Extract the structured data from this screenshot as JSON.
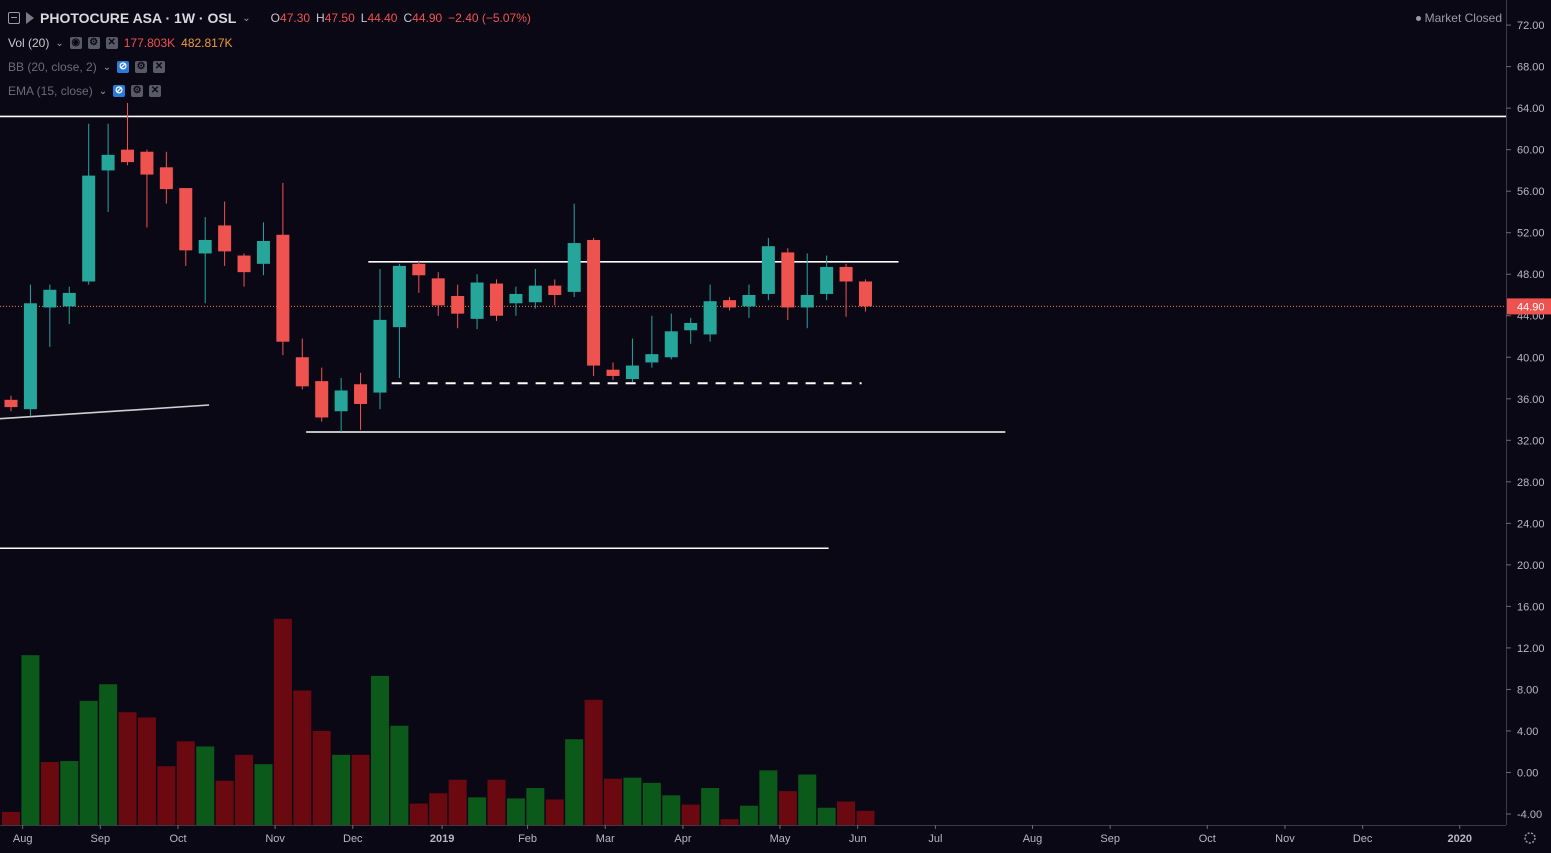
{
  "header": {
    "symbol": "PHOTOCURE ASA · 1W · OSL",
    "ohlc": [
      {
        "k": "O",
        "v": "47.30"
      },
      {
        "k": "H",
        "v": "47.50"
      },
      {
        "k": "L",
        "v": "44.40"
      },
      {
        "k": "C",
        "v": "44.90"
      }
    ],
    "change": "−2.40 (−5.07%)",
    "market_status": "Market Closed"
  },
  "indicators": {
    "vol": {
      "label": "Vol (20)",
      "v1": "177.803K",
      "v2": "482.817K"
    },
    "bb": {
      "label": "BB (20, close, 2)"
    },
    "ema": {
      "label": "EMA (15, close)"
    }
  },
  "chart_data": {
    "type": "candlestick",
    "y_ticks": [
      "72.00",
      "68.00",
      "64.00",
      "60.00",
      "56.00",
      "52.00",
      "48.00",
      "44.00",
      "40.00",
      "36.00",
      "32.00",
      "28.00",
      "24.00",
      "20.00",
      "16.00",
      "12.00",
      "8.00",
      "4.00",
      "0.00",
      "-4.00"
    ],
    "ylim": [
      -6,
      73.5
    ],
    "x_labels": [
      {
        "label": "Aug",
        "i": 0.6
      },
      {
        "label": "Sep",
        "i": 4.6
      },
      {
        "label": "Oct",
        "i": 8.6
      },
      {
        "label": "Nov",
        "i": 13.6
      },
      {
        "label": "Dec",
        "i": 17.6
      },
      {
        "label": "2019",
        "i": 22.2
      },
      {
        "label": "Feb",
        "i": 26.6
      },
      {
        "label": "Mar",
        "i": 30.6
      },
      {
        "label": "Apr",
        "i": 34.6
      },
      {
        "label": "May",
        "i": 39.6
      },
      {
        "label": "Jun",
        "i": 43.6
      },
      {
        "label": "Jul",
        "i": 47.6
      },
      {
        "label": "Aug",
        "i": 52.6
      },
      {
        "label": "Sep",
        "i": 56.6
      },
      {
        "label": "Oct",
        "i": 61.6
      },
      {
        "label": "Nov",
        "i": 65.6
      },
      {
        "label": "Dec",
        "i": 69.6
      },
      {
        "label": "2020",
        "i": 74.6
      }
    ],
    "last_price": "44.90",
    "candles": [
      {
        "o": 35.9,
        "h": 36.3,
        "l": 34.8,
        "c": 35.2
      },
      {
        "o": 35.0,
        "h": 47.0,
        "l": 34.3,
        "c": 45.2
      },
      {
        "o": 44.8,
        "h": 47.0,
        "l": 41.0,
        "c": 46.5
      },
      {
        "o": 44.9,
        "h": 46.8,
        "l": 43.2,
        "c": 46.2
      },
      {
        "o": 47.3,
        "h": 62.5,
        "l": 47.0,
        "c": 57.5
      },
      {
        "o": 58.0,
        "h": 62.5,
        "l": 54.0,
        "c": 59.5
      },
      {
        "o": 60.0,
        "h": 64.5,
        "l": 58.5,
        "c": 58.8
      },
      {
        "o": 59.8,
        "h": 60.0,
        "l": 52.5,
        "c": 57.6
      },
      {
        "o": 58.3,
        "h": 59.8,
        "l": 54.8,
        "c": 56.2
      },
      {
        "o": 56.3,
        "h": 56.3,
        "l": 48.8,
        "c": 50.3
      },
      {
        "o": 50.0,
        "h": 53.5,
        "l": 45.2,
        "c": 51.3
      },
      {
        "o": 52.7,
        "h": 55.0,
        "l": 48.8,
        "c": 50.2
      },
      {
        "o": 49.8,
        "h": 50.0,
        "l": 46.8,
        "c": 48.2
      },
      {
        "o": 49.0,
        "h": 53.0,
        "l": 47.9,
        "c": 51.2
      },
      {
        "o": 51.8,
        "h": 56.8,
        "l": 40.2,
        "c": 41.5
      },
      {
        "o": 40.0,
        "h": 41.8,
        "l": 36.9,
        "c": 37.2
      },
      {
        "o": 37.7,
        "h": 39.0,
        "l": 33.8,
        "c": 34.2
      },
      {
        "o": 34.8,
        "h": 38.0,
        "l": 32.8,
        "c": 36.8
      },
      {
        "o": 37.4,
        "h": 38.5,
        "l": 33.0,
        "c": 35.5
      },
      {
        "o": 36.6,
        "h": 48.5,
        "l": 35.0,
        "c": 43.6
      },
      {
        "o": 42.9,
        "h": 49.0,
        "l": 38.0,
        "c": 48.8
      },
      {
        "o": 49.0,
        "h": 49.3,
        "l": 46.2,
        "c": 47.9
      },
      {
        "o": 47.6,
        "h": 48.2,
        "l": 44.0,
        "c": 45.0
      },
      {
        "o": 45.9,
        "h": 47.0,
        "l": 42.8,
        "c": 44.2
      },
      {
        "o": 43.7,
        "h": 48.0,
        "l": 42.7,
        "c": 47.2
      },
      {
        "o": 47.1,
        "h": 47.5,
        "l": 43.5,
        "c": 44.0
      },
      {
        "o": 45.2,
        "h": 46.8,
        "l": 44.0,
        "c": 46.1
      },
      {
        "o": 45.3,
        "h": 48.5,
        "l": 44.7,
        "c": 46.9
      },
      {
        "o": 46.9,
        "h": 47.5,
        "l": 45.0,
        "c": 46.0
      },
      {
        "o": 46.3,
        "h": 54.8,
        "l": 45.8,
        "c": 51.0
      },
      {
        "o": 51.3,
        "h": 51.5,
        "l": 38.2,
        "c": 39.2
      },
      {
        "o": 38.8,
        "h": 39.5,
        "l": 37.8,
        "c": 38.2
      },
      {
        "o": 37.9,
        "h": 41.8,
        "l": 37.6,
        "c": 39.2
      },
      {
        "o": 39.5,
        "h": 44.0,
        "l": 39.0,
        "c": 40.3
      },
      {
        "o": 40.0,
        "h": 44.2,
        "l": 39.8,
        "c": 42.5
      },
      {
        "o": 42.6,
        "h": 43.8,
        "l": 41.3,
        "c": 43.3
      },
      {
        "o": 42.2,
        "h": 47.0,
        "l": 41.5,
        "c": 45.4
      },
      {
        "o": 45.5,
        "h": 45.8,
        "l": 44.5,
        "c": 44.8
      },
      {
        "o": 44.9,
        "h": 47.0,
        "l": 43.8,
        "c": 46.0
      },
      {
        "o": 46.1,
        "h": 51.5,
        "l": 45.5,
        "c": 50.7
      },
      {
        "o": 50.1,
        "h": 50.5,
        "l": 43.6,
        "c": 44.8
      },
      {
        "o": 44.8,
        "h": 50.0,
        "l": 42.8,
        "c": 46.0
      },
      {
        "o": 46.1,
        "h": 49.8,
        "l": 45.5,
        "c": 48.7
      },
      {
        "o": 48.7,
        "h": 49.0,
        "l": 43.9,
        "c": 47.3
      },
      {
        "o": 47.3,
        "h": 47.5,
        "l": 44.4,
        "c": 44.9
      }
    ],
    "volume": [
      {
        "v": -3.8,
        "up": false
      },
      {
        "v": 11.3,
        "up": true
      },
      {
        "v": 1.0,
        "up": false
      },
      {
        "v": 1.1,
        "up": true
      },
      {
        "v": 6.9,
        "up": true
      },
      {
        "v": 8.5,
        "up": true
      },
      {
        "v": 5.8,
        "up": false
      },
      {
        "v": 5.3,
        "up": false
      },
      {
        "v": 0.6,
        "up": false
      },
      {
        "v": 3.0,
        "up": false
      },
      {
        "v": 2.5,
        "up": true
      },
      {
        "v": -0.8,
        "up": false
      },
      {
        "v": 1.7,
        "up": false
      },
      {
        "v": 0.8,
        "up": true
      },
      {
        "v": 14.8,
        "up": false
      },
      {
        "v": 7.9,
        "up": false
      },
      {
        "v": 4.0,
        "up": false
      },
      {
        "v": 1.7,
        "up": true
      },
      {
        "v": 1.7,
        "up": false
      },
      {
        "v": 9.3,
        "up": true
      },
      {
        "v": 4.5,
        "up": true
      },
      {
        "v": -3.0,
        "up": false
      },
      {
        "v": -2.0,
        "up": false
      },
      {
        "v": -0.7,
        "up": false
      },
      {
        "v": -2.4,
        "up": true
      },
      {
        "v": -0.7,
        "up": false
      },
      {
        "v": -2.5,
        "up": true
      },
      {
        "v": -1.5,
        "up": true
      },
      {
        "v": -2.6,
        "up": false
      },
      {
        "v": 3.2,
        "up": true
      },
      {
        "v": 7.0,
        "up": false
      },
      {
        "v": -0.6,
        "up": false
      },
      {
        "v": -0.5,
        "up": true
      },
      {
        "v": -1.0,
        "up": true
      },
      {
        "v": -2.2,
        "up": true
      },
      {
        "v": -3.1,
        "up": false
      },
      {
        "v": -1.5,
        "up": true
      },
      {
        "v": -4.5,
        "up": false
      },
      {
        "v": -3.2,
        "up": true
      },
      {
        "v": 0.2,
        "up": true
      },
      {
        "v": -1.8,
        "up": false
      },
      {
        "v": -0.2,
        "up": true
      },
      {
        "v": -3.4,
        "up": true
      },
      {
        "v": -2.8,
        "up": false
      },
      {
        "v": -3.7,
        "up": false
      }
    ],
    "drawings": [
      {
        "type": "trend",
        "i1": -1.2,
        "p1": 34.0,
        "i2": 10.2,
        "p2": 35.4,
        "style": "solid"
      },
      {
        "type": "hline",
        "i1": -1.2,
        "i2": 77.0,
        "p": 63.2,
        "style": "solid"
      },
      {
        "type": "hline",
        "i1": 18.4,
        "i2": 45.7,
        "p": 49.2,
        "style": "solid"
      },
      {
        "type": "hline",
        "i1": 19.6,
        "i2": 43.8,
        "p": 37.5,
        "style": "dashed"
      },
      {
        "type": "hline",
        "i1": 15.2,
        "i2": 51.2,
        "p": 32.8,
        "style": "solid"
      },
      {
        "type": "hline",
        "i1": -1.2,
        "i2": 42.1,
        "p": 21.6,
        "style": "solid"
      }
    ]
  },
  "colors": {
    "up": "#26a69a",
    "down": "#ef5350",
    "vol_up": "#0b5a1a",
    "vol_down": "#6a0a10",
    "bg": "#0b0816",
    "price_line": "#ef7a3a"
  }
}
